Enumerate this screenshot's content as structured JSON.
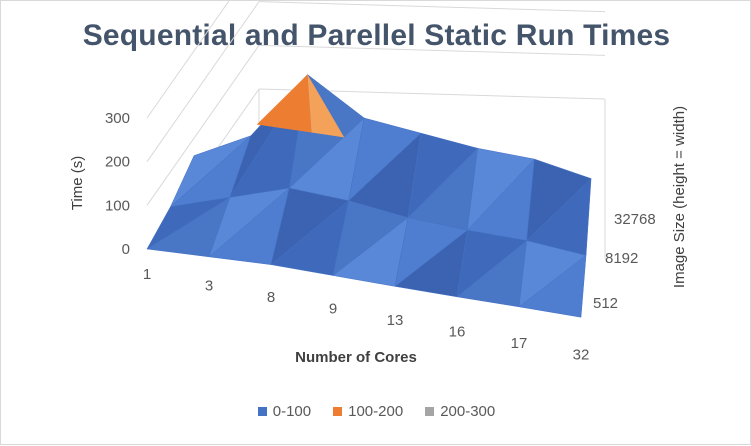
{
  "chart_data": {
    "type": "surface-3d",
    "title": "Sequential and Parellel Static Run Times",
    "xlabel": "Number of Cores",
    "ylabel": "Time (s)",
    "zlabel": "Image Size (height = width)",
    "x_categories": [
      "1",
      "3",
      "8",
      "9",
      "13",
      "16",
      "17",
      "32"
    ],
    "z_categories": [
      "512",
      "8192",
      "32768"
    ],
    "y_ticks": [
      0,
      100,
      200,
      300
    ],
    "ylim": [
      0,
      300
    ],
    "legend": [
      {
        "label": "0-100",
        "color": "#4472c4"
      },
      {
        "label": "100-200",
        "color": "#ed7d31"
      },
      {
        "label": "200-300",
        "color": "#a5a5a5"
      }
    ],
    "legend_position": "bottom",
    "series": [
      {
        "name": "512",
        "values": [
          0,
          5,
          10,
          8,
          6,
          5,
          5,
          4
        ]
      },
      {
        "name": "8192",
        "values": [
          20,
          60,
          100,
          90,
          70,
          60,
          55,
          40
        ]
      },
      {
        "name": "32768",
        "values": [
          60,
          120,
          275,
          190,
          170,
          150,
          140,
          110
        ]
      }
    ]
  }
}
